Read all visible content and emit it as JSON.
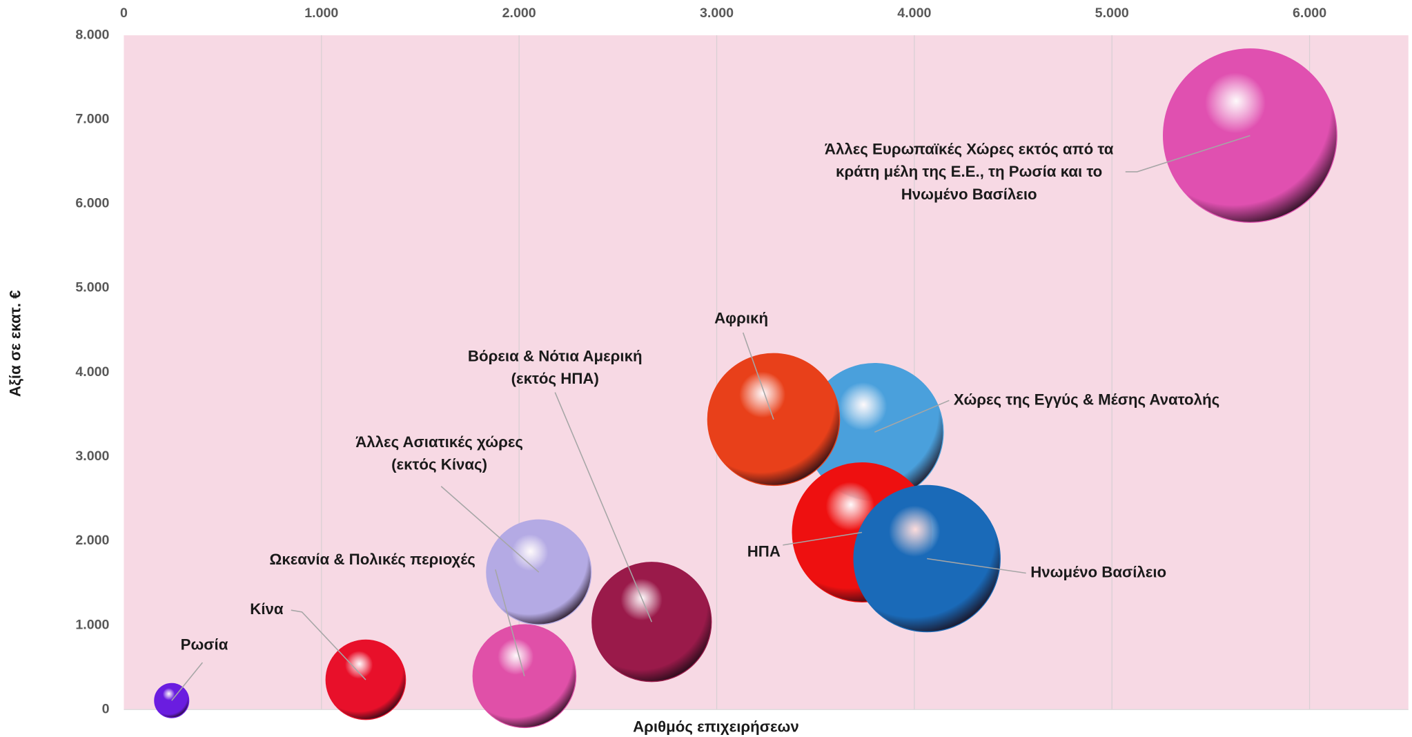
{
  "chart_data": {
    "type": "bubble",
    "x_label": "Αριθμός επιχειρήσεων",
    "y_label": "Αξία σε εκατ. €",
    "xlim": [
      0,
      6500
    ],
    "ylim": [
      0,
      8000
    ],
    "xticks": [
      0,
      {
        "value": 1000,
        "label": "1.000"
      },
      {
        "value": 2000,
        "label": "2.000"
      },
      {
        "value": 3000,
        "label": "3.000"
      },
      {
        "value": 4000,
        "label": "4.000"
      },
      {
        "value": 5000,
        "label": "5.000"
      },
      {
        "value": 6000,
        "label": "6.000"
      }
    ],
    "yticks": [
      0,
      {
        "value": 1000,
        "label": "1.000"
      },
      {
        "value": 2000,
        "label": "2.000"
      },
      {
        "value": 3000,
        "label": "3.000"
      },
      {
        "value": 4000,
        "label": "4.000"
      },
      {
        "value": 5000,
        "label": "5.000"
      },
      {
        "value": 6000,
        "label": "6.000"
      },
      {
        "value": 7000,
        "label": "7.000"
      },
      {
        "value": 8000,
        "label": "8.000"
      }
    ],
    "grid": true,
    "series": [
      {
        "name": [
          "Ρωσία"
        ],
        "color": "#6a1de0",
        "x": [
          242
        ],
        "values": [
          107
        ],
        "sizes": [
          3.6
        ]
      },
      {
        "name": [
          "Κίνα"
        ],
        "color": "#e8102a",
        "x": [
          1224
        ],
        "values": [
          354
        ],
        "sizes": [
          19.4
        ]
      },
      {
        "name": [
          "Ωκεανία & Πολικές περιοχές"
        ],
        "color": "#e050a8",
        "x": [
          2027
        ],
        "values": [
          397
        ],
        "sizes": [
          32.5
        ]
      },
      {
        "name": [
          "Άλλες Ασιατικές χώρες",
          "(εκτός Κίνας)"
        ],
        "color": "#b4aae4",
        "x": [
          2100
        ],
        "values": [
          1630
        ],
        "sizes": [
          33.6
        ]
      },
      {
        "name": [
          "Βόρεια & Νότια Αμερική",
          "(εκτός ΗΠΑ)"
        ],
        "color": "#9a1a4a",
        "x": [
          2671
        ],
        "values": [
          1040
        ],
        "sizes": [
          43.6
        ]
      },
      {
        "name": [
          "Χώρες της Εγγύς & Μέσης Ανατολής"
        ],
        "color": "#4aa0dc",
        "x": [
          3799
        ],
        "values": [
          3292
        ],
        "sizes": [
          57.8
        ]
      },
      {
        "name": [
          "Αφρική"
        ],
        "color": "#e8401a",
        "x": [
          3288
        ],
        "values": [
          3442
        ],
        "sizes": [
          53.3
        ]
      },
      {
        "name": [
          "ΗΠΑ"
        ],
        "color": "#ee1010",
        "x": [
          3735
        ],
        "values": [
          2102
        ],
        "sizes": [
          59.3
        ]
      },
      {
        "name": [
          "Ηνωμένο Βασίλειο"
        ],
        "color": "#1a6ab8",
        "x": [
          4064
        ],
        "values": [
          1791
        ],
        "sizes": [
          65.6
        ]
      },
      {
        "name": [
          "Άλλες Ευρωπαϊκές Χώρες εκτός από τα",
          "κράτη μέλη της Ε.Ε., τη Ρωσία και το",
          "Ηνωμένο Βασίλειο"
        ],
        "color": "#e050b0",
        "x": [
          5699
        ],
        "values": [
          6810
        ],
        "sizes": [
          92.2
        ]
      }
    ]
  }
}
